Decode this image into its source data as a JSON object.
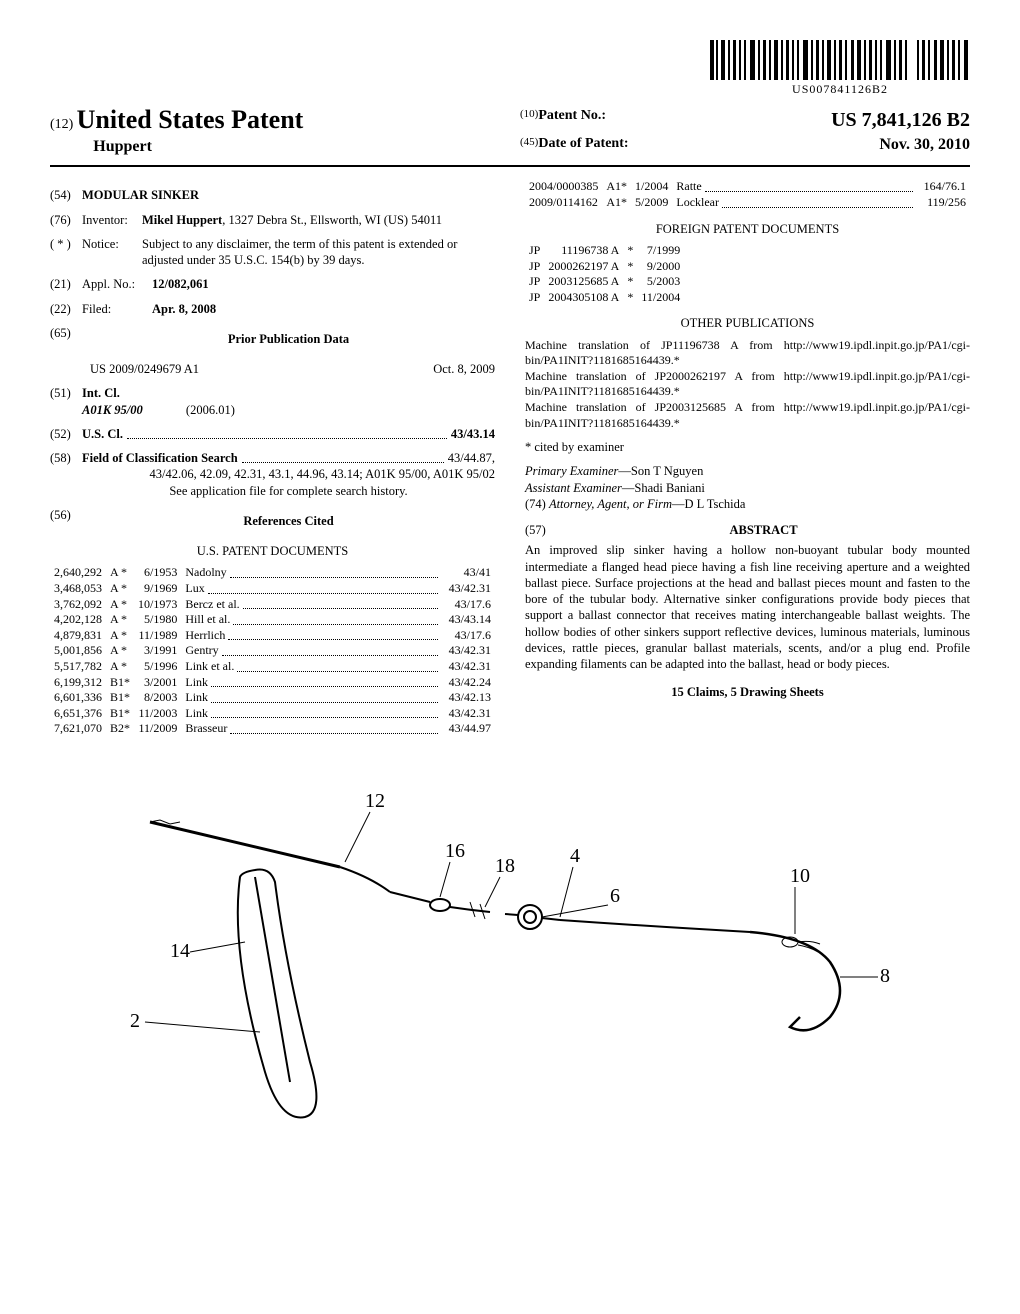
{
  "barcode_text": "US007841126B2",
  "header": {
    "prefix": "(12)",
    "title": "United States Patent",
    "inventor_surname": "Huppert",
    "patent_no_code": "(10)",
    "patent_no_label": "Patent No.:",
    "patent_no_value": "US 7,841,126 B2",
    "date_code": "(45)",
    "date_label": "Date of Patent:",
    "date_value": "Nov. 30, 2010"
  },
  "left": {
    "title_code": "(54)",
    "title": "MODULAR SINKER",
    "inventor_code": "(76)",
    "inventor_label": "Inventor:",
    "inventor_name": "Mikel Huppert",
    "inventor_addr": ", 1327 Debra St., Ellsworth, WI (US) 54011",
    "notice_code": "( * )",
    "notice_label": "Notice:",
    "notice_text": "Subject to any disclaimer, the term of this patent is extended or adjusted under 35 U.S.C. 154(b) by 39 days.",
    "appl_code": "(21)",
    "appl_label": "Appl. No.:",
    "appl_value": "12/082,061",
    "filed_code": "(22)",
    "filed_label": "Filed:",
    "filed_value": "Apr. 8, 2008",
    "prior_code": "(65)",
    "prior_title": "Prior Publication Data",
    "prior_pub": "US 2009/0249679 A1",
    "prior_date": "Oct. 8, 2009",
    "intcl_code": "(51)",
    "intcl_label": "Int. Cl.",
    "intcl_class": "A01K 95/00",
    "intcl_year": "(2006.01)",
    "uscl_code": "(52)",
    "uscl_label": "U.S. Cl.",
    "uscl_value": "43/43.14",
    "fos_code": "(58)",
    "fos_label": "Field of Classification Search",
    "fos_lead": "43/44.87,",
    "fos_values": "43/42.06, 42.09, 42.31, 43.1, 44.96, 43.14; A01K 95/00, A01K 95/02",
    "fos_note": "See application file for complete search history.",
    "ref_code": "(56)",
    "ref_title": "References Cited",
    "us_docs_title": "U.S. PATENT DOCUMENTS",
    "us_refs": [
      {
        "no": "2,640,292",
        "t": "A *",
        "d": "6/1953",
        "nm": "Nadolny",
        "c": "43/41"
      },
      {
        "no": "3,468,053",
        "t": "A *",
        "d": "9/1969",
        "nm": "Lux",
        "c": "43/42.31"
      },
      {
        "no": "3,762,092",
        "t": "A *",
        "d": "10/1973",
        "nm": "Bercz et al.",
        "c": "43/17.6"
      },
      {
        "no": "4,202,128",
        "t": "A *",
        "d": "5/1980",
        "nm": "Hill et al.",
        "c": "43/43.14"
      },
      {
        "no": "4,879,831",
        "t": "A *",
        "d": "11/1989",
        "nm": "Herrlich",
        "c": "43/17.6"
      },
      {
        "no": "5,001,856",
        "t": "A *",
        "d": "3/1991",
        "nm": "Gentry",
        "c": "43/42.31"
      },
      {
        "no": "5,517,782",
        "t": "A *",
        "d": "5/1996",
        "nm": "Link et al.",
        "c": "43/42.31"
      },
      {
        "no": "6,199,312",
        "t": "B1*",
        "d": "3/2001",
        "nm": "Link",
        "c": "43/42.24"
      },
      {
        "no": "6,601,336",
        "t": "B1*",
        "d": "8/2003",
        "nm": "Link",
        "c": "43/42.13"
      },
      {
        "no": "6,651,376",
        "t": "B1*",
        "d": "11/2003",
        "nm": "Link",
        "c": "43/42.31"
      },
      {
        "no": "7,621,070",
        "t": "B2*",
        "d": "11/2009",
        "nm": "Brasseur",
        "c": "43/44.97"
      }
    ]
  },
  "right": {
    "more_us_refs": [
      {
        "no": "2004/0000385",
        "t": "A1*",
        "d": "1/2004",
        "nm": "Ratte",
        "c": "164/76.1"
      },
      {
        "no": "2009/0114162",
        "t": "A1*",
        "d": "5/2009",
        "nm": "Locklear",
        "c": "119/256"
      }
    ],
    "foreign_title": "FOREIGN PATENT DOCUMENTS",
    "foreign_refs": [
      {
        "cc": "JP",
        "no": "11196738 A",
        "star": "*",
        "d": "7/1999"
      },
      {
        "cc": "JP",
        "no": "2000262197 A",
        "star": "*",
        "d": "9/2000"
      },
      {
        "cc": "JP",
        "no": "2003125685 A",
        "star": "*",
        "d": "5/2003"
      },
      {
        "cc": "JP",
        "no": "2004305108 A",
        "star": "*",
        "d": "11/2004"
      }
    ],
    "other_pubs_title": "OTHER PUBLICATIONS",
    "other_pubs": [
      "Machine translation of JP11196738 A from http://www19.ipdl.inpit.go.jp/PA1/cgi-bin/PA1INIT?1181685164439.*",
      "Machine translation of JP2000262197 A from http://www19.ipdl.inpit.go.jp/PA1/cgi-bin/PA1INIT?1181685164439.*",
      "Machine translation of JP2003125685 A from http://www19.ipdl.inpit.go.jp/PA1/cgi-bin/PA1INIT?1181685164439.*"
    ],
    "cited_note": "* cited by examiner",
    "primary_label": "Primary Examiner",
    "primary_value": "—Son T Nguyen",
    "assistant_label": "Assistant Examiner",
    "assistant_value": "—Shadi Baniani",
    "attorney_code": "(74)",
    "attorney_label": "Attorney, Agent, or Firm",
    "attorney_value": "—D L Tschida",
    "abstract_code": "(57)",
    "abstract_title": "ABSTRACT",
    "abstract_text": "An improved slip sinker having a hollow non-buoyant tubular body mounted intermediate a flanged head piece having a fish line receiving aperture and a weighted ballast piece. Surface projections at the head and ballast pieces mount and fasten to the bore of the tubular body. Alternative sinker configurations provide body pieces that support a ballast connector that receives mating interchangeable ballast weights. The hollow bodies of other sinkers support reflective devices, luminous materials, luminous devices, rattle pieces, granular ballast materials, scents, and/or a plug end. Profile expanding filaments can be adapted into the ballast, head or body pieces.",
    "claims_sheets": "15 Claims, 5 Drawing Sheets"
  },
  "figure_labels": {
    "n2": "2",
    "n4": "4",
    "n6": "6",
    "n8": "8",
    "n10": "10",
    "n12": "12",
    "n14": "14",
    "n16": "16",
    "n18": "18"
  }
}
